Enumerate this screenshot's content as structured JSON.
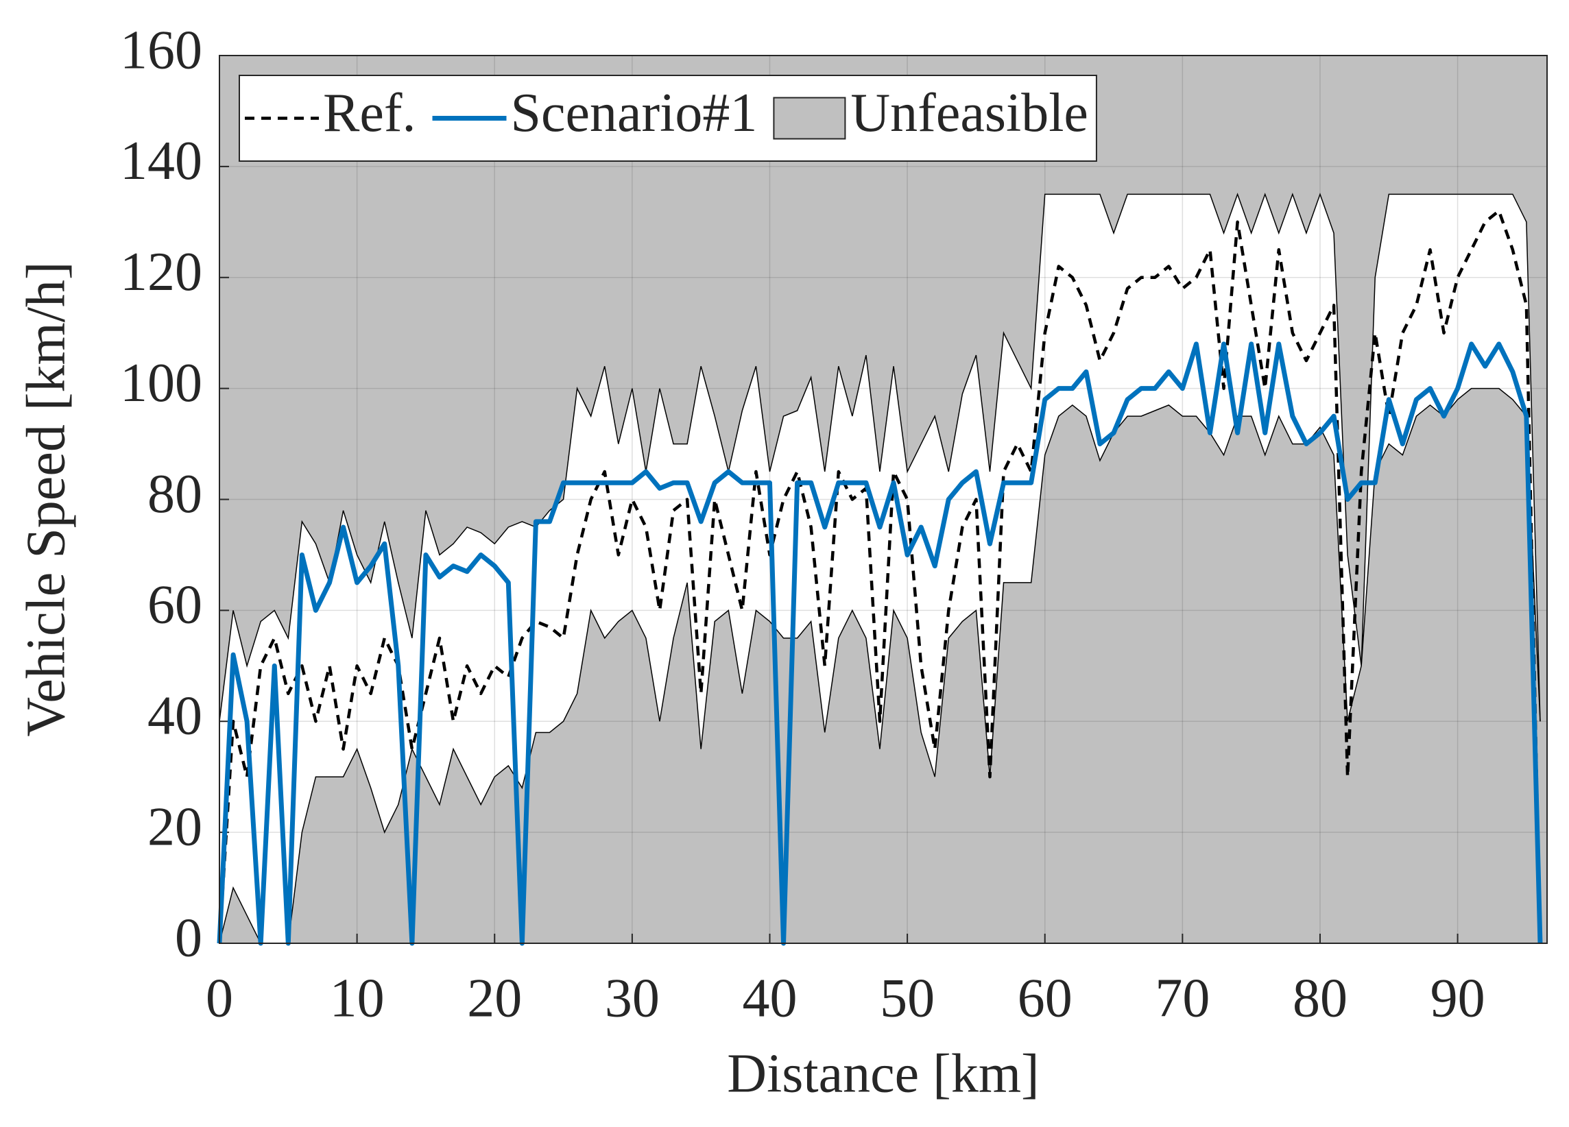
{
  "chart_data": {
    "type": "line",
    "xlabel": "Distance [km]",
    "ylabel": "Vehicle Speed [km/h]",
    "xlim": [
      0,
      96.5
    ],
    "ylim": [
      0,
      160
    ],
    "xticks": [
      0,
      10,
      20,
      30,
      40,
      50,
      60,
      70,
      80,
      90
    ],
    "yticks": [
      0,
      20,
      40,
      60,
      80,
      100,
      120,
      140,
      160
    ],
    "grid": true,
    "legend": "upper left",
    "x": [
      0,
      1,
      2,
      3,
      4,
      5,
      6,
      7,
      8,
      9,
      10,
      11,
      12,
      13,
      14,
      15,
      16,
      17,
      18,
      19,
      20,
      21,
      22,
      23,
      24,
      25,
      26,
      27,
      28,
      29,
      30,
      31,
      32,
      33,
      34,
      35,
      36,
      37,
      38,
      39,
      40,
      41,
      42,
      43,
      44,
      45,
      46,
      47,
      48,
      49,
      50,
      51,
      52,
      53,
      54,
      55,
      56,
      57,
      58,
      59,
      60,
      61,
      62,
      63,
      64,
      65,
      66,
      67,
      68,
      69,
      70,
      71,
      72,
      73,
      74,
      75,
      76,
      77,
      78,
      79,
      80,
      81,
      82,
      83,
      84,
      85,
      86,
      87,
      88,
      89,
      90,
      91,
      92,
      93,
      94,
      95,
      96
    ],
    "band": {
      "name": "Unfeasible",
      "color": "#c0c0c0",
      "upper": [
        40,
        60,
        50,
        58,
        60,
        55,
        76,
        72,
        65,
        78,
        70,
        65,
        76,
        65,
        55,
        78,
        70,
        72,
        75,
        74,
        72,
        75,
        76,
        75,
        78,
        80,
        100,
        95,
        104,
        90,
        100,
        85,
        100,
        90,
        90,
        104,
        95,
        85,
        96,
        104,
        85,
        95,
        96,
        102,
        85,
        104,
        95,
        106,
        85,
        104,
        85,
        90,
        95,
        85,
        99,
        106,
        85,
        110,
        105,
        100,
        135,
        135,
        135,
        135,
        135,
        128,
        135,
        135,
        135,
        135,
        135,
        135,
        135,
        128,
        135,
        128,
        135,
        128,
        135,
        128,
        135,
        128,
        70,
        50,
        120,
        135,
        135,
        135,
        135,
        135,
        135,
        135,
        135,
        135,
        135,
        130,
        40
      ],
      "lower": [
        0,
        10,
        5,
        0,
        0,
        0,
        20,
        30,
        30,
        30,
        35,
        28,
        20,
        25,
        35,
        30,
        25,
        35,
        30,
        25,
        30,
        32,
        28,
        38,
        38,
        40,
        45,
        60,
        55,
        58,
        60,
        55,
        40,
        55,
        65,
        35,
        58,
        60,
        45,
        60,
        58,
        55,
        55,
        58,
        38,
        55,
        60,
        55,
        35,
        60,
        55,
        38,
        30,
        55,
        58,
        60,
        30,
        65,
        65,
        65,
        88,
        95,
        97,
        95,
        87,
        92,
        95,
        95,
        96,
        97,
        95,
        95,
        92,
        88,
        95,
        95,
        88,
        95,
        90,
        90,
        93,
        88,
        40,
        50,
        85,
        90,
        88,
        95,
        97,
        95,
        98,
        100,
        100,
        100,
        98,
        95,
        40
      ]
    },
    "series": [
      {
        "name": "Ref.",
        "color": "#000000",
        "dash": true,
        "values": [
          0,
          40,
          30,
          50,
          55,
          45,
          50,
          40,
          50,
          35,
          50,
          45,
          55,
          50,
          35,
          45,
          55,
          40,
          50,
          45,
          50,
          48,
          55,
          58,
          57,
          55,
          70,
          80,
          85,
          70,
          80,
          75,
          60,
          78,
          80,
          45,
          80,
          70,
          60,
          85,
          70,
          80,
          85,
          75,
          50,
          85,
          80,
          82,
          40,
          85,
          80,
          50,
          35,
          60,
          75,
          80,
          30,
          85,
          90,
          85,
          110,
          122,
          120,
          115,
          105,
          110,
          118,
          120,
          120,
          122,
          118,
          120,
          125,
          100,
          130,
          115,
          100,
          125,
          110,
          105,
          110,
          115,
          30,
          85,
          110,
          95,
          110,
          115,
          125,
          110,
          120,
          125,
          130,
          132,
          125,
          115,
          0
        ]
      },
      {
        "name": "Scenario#1",
        "color": "#0072bd",
        "dash": false,
        "values": [
          0,
          52,
          40,
          0,
          50,
          0,
          70,
          60,
          65,
          75,
          65,
          68,
          72,
          50,
          0,
          70,
          66,
          68,
          67,
          70,
          68,
          65,
          0,
          76,
          76,
          83,
          83,
          83,
          83,
          83,
          83,
          85,
          82,
          83,
          83,
          76,
          83,
          85,
          83,
          83,
          83,
          0,
          83,
          83,
          75,
          83,
          83,
          83,
          75,
          83,
          70,
          75,
          68,
          80,
          83,
          85,
          72,
          83,
          83,
          83,
          98,
          100,
          100,
          103,
          90,
          92,
          98,
          100,
          100,
          103,
          100,
          108,
          92,
          108,
          92,
          108,
          92,
          108,
          95,
          90,
          92,
          95,
          80,
          83,
          83,
          98,
          90,
          98,
          100,
          95,
          100,
          108,
          104,
          108,
          103,
          95,
          0
        ]
      }
    ]
  }
}
